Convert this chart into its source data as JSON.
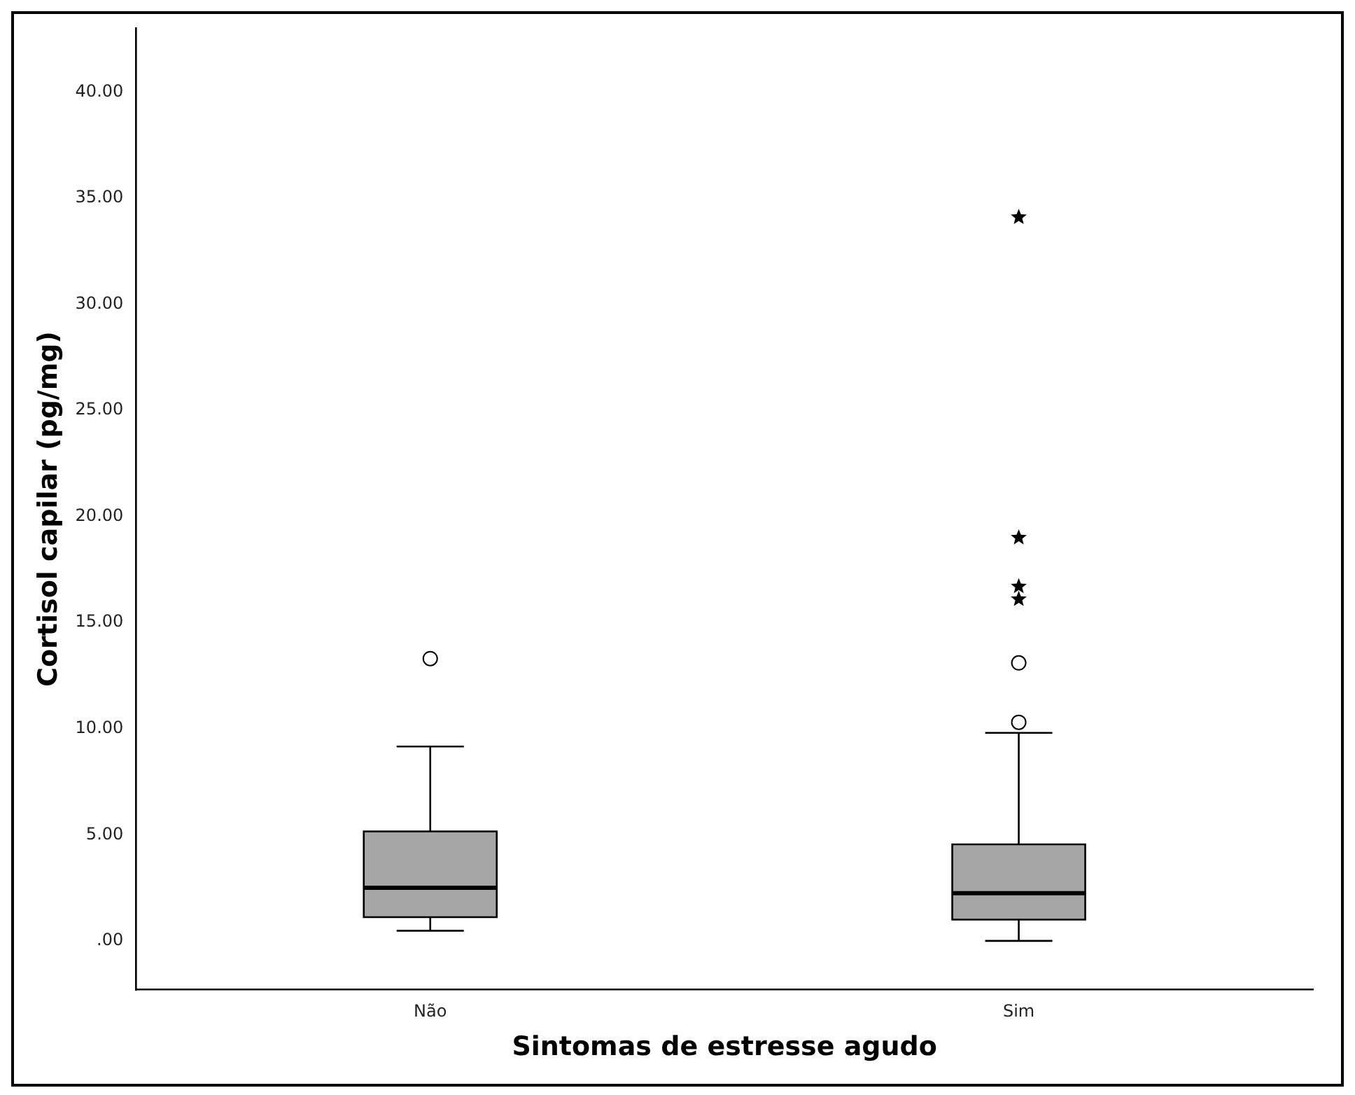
{
  "chart_data": {
    "type": "box",
    "xlabel": "Sintomas de estresse agudo",
    "ylabel": "Cortisol capilar (pg/mg)",
    "categories": [
      "Não",
      "Sim"
    ],
    "color": "#a6a6a6",
    "boxes": [
      {
        "low": 0.48,
        "q1": 1.12,
        "median": 2.5,
        "q3": 5.16,
        "high": 9.16,
        "outliers": [
          13.3
        ]
      },
      {
        "low": 0,
        "q1": 1.0,
        "median": 2.25,
        "q3": 4.55,
        "high": 9.8,
        "outliers": [
          10.3,
          13.1
        ]
      }
    ],
    "series": [
      {
        "type": "scatter",
        "marker": "star",
        "x": [
          "Sim",
          "Sim",
          "Sim",
          "Sim"
        ],
        "values": [
          34.1,
          19.0,
          16.7,
          16.1
        ],
        "color": "#000000"
      }
    ],
    "ylim": [
      -2.3,
      43
    ],
    "yticks": [
      {
        "value": 0,
        "label": ".00"
      },
      {
        "value": 5,
        "label": "5.00"
      },
      {
        "value": 10,
        "label": "10.00"
      },
      {
        "value": 15,
        "label": "15.00"
      },
      {
        "value": 20,
        "label": "20.00"
      },
      {
        "value": 25,
        "label": "25.00"
      },
      {
        "value": 30,
        "label": "30.00"
      },
      {
        "value": 35,
        "label": "35.00"
      },
      {
        "value": 40,
        "label": "40.00"
      }
    ],
    "grid": false,
    "legend": false
  }
}
